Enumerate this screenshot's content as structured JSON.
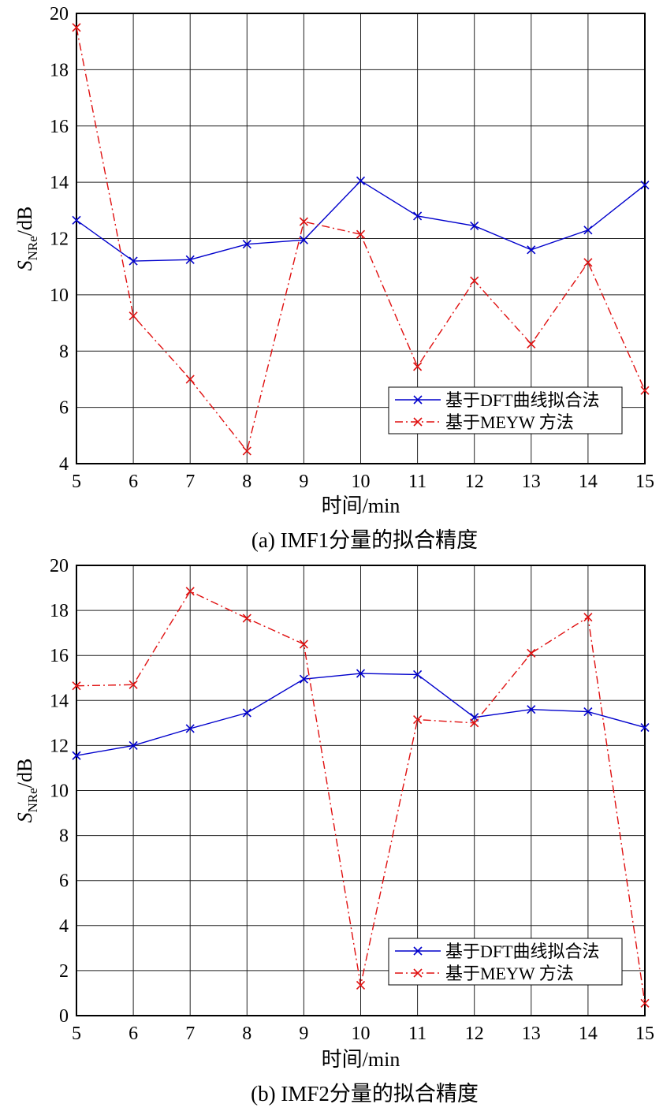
{
  "chart_data": [
    {
      "type": "line",
      "caption": "(a) IMF1分量的拟合精度",
      "xlabel": "时间/min",
      "ylabel": {
        "main": "S",
        "subscript": "NRe",
        "suffix": "/dB"
      },
      "xlim": [
        5,
        15
      ],
      "ylim": [
        4,
        20
      ],
      "xticks": [
        5,
        6,
        7,
        8,
        9,
        10,
        11,
        12,
        13,
        14,
        15
      ],
      "yticks": [
        4,
        6,
        8,
        10,
        12,
        14,
        16,
        18,
        20
      ],
      "grid": true,
      "legend_position": "bottom-right",
      "x": [
        5,
        6,
        7,
        8,
        9,
        10,
        11,
        12,
        13,
        14,
        15
      ],
      "series": [
        {
          "name": "基于DFT曲线拟合法",
          "color": "#0000cc",
          "line_style": "solid",
          "marker": "x",
          "values": [
            12.65,
            11.2,
            11.25,
            11.8,
            11.95,
            14.05,
            12.8,
            12.45,
            11.6,
            12.3,
            13.9
          ]
        },
        {
          "name": "基于MEYW 方法",
          "color": "#e01010",
          "line_style": "dash-dot",
          "marker": "x",
          "values": [
            19.5,
            9.25,
            7.0,
            4.45,
            12.6,
            12.15,
            7.45,
            10.5,
            8.25,
            11.15,
            6.6
          ]
        }
      ]
    },
    {
      "type": "line",
      "caption": "(b) IMF2分量的拟合精度",
      "xlabel": "时间/min",
      "ylabel": {
        "main": "S",
        "subscript": "NRe",
        "suffix": "/dB"
      },
      "xlim": [
        5,
        15
      ],
      "ylim": [
        0,
        20
      ],
      "xticks": [
        5,
        6,
        7,
        8,
        9,
        10,
        11,
        12,
        13,
        14,
        15
      ],
      "yticks": [
        0,
        2,
        4,
        6,
        8,
        10,
        12,
        14,
        16,
        18,
        20
      ],
      "grid": true,
      "legend_position": "bottom-right",
      "x": [
        5,
        6,
        7,
        8,
        9,
        10,
        11,
        12,
        13,
        14,
        15
      ],
      "series": [
        {
          "name": "基于DFT曲线拟合法",
          "color": "#0000cc",
          "line_style": "solid",
          "marker": "x",
          "values": [
            11.55,
            12.0,
            12.75,
            13.45,
            14.95,
            15.2,
            15.15,
            13.25,
            13.6,
            13.5,
            12.8
          ]
        },
        {
          "name": "基于MEYW 方法",
          "color": "#e01010",
          "line_style": "dash-dot",
          "marker": "x",
          "values": [
            14.65,
            14.7,
            18.85,
            17.65,
            16.5,
            1.35,
            13.15,
            13.0,
            16.1,
            17.7,
            0.55
          ]
        }
      ]
    }
  ]
}
